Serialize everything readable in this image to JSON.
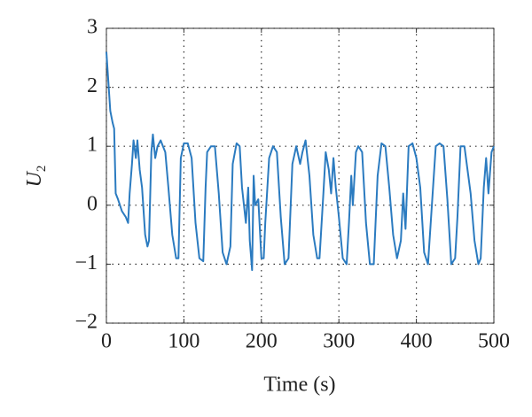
{
  "chart_data": {
    "type": "line",
    "xlabel": "Time (s)",
    "ylabel": {
      "main": "U",
      "sub": "2"
    },
    "xlim": [
      0,
      500
    ],
    "xticks": [
      0,
      100,
      200,
      300,
      400,
      500
    ],
    "ylim": [
      -2,
      3
    ],
    "yticks": [
      {
        "value": -2,
        "label": "−2"
      },
      {
        "value": -1,
        "label": "−1"
      },
      0,
      1,
      2,
      3
    ],
    "grid": true,
    "series": [
      {
        "color": "#2b7bc0",
        "x": [
          0,
          2,
          5,
          8,
          10,
          12,
          15,
          20,
          25,
          28,
          30,
          33,
          35,
          38,
          40,
          43,
          46,
          50,
          53,
          55,
          58,
          60,
          63,
          66,
          70,
          73,
          76,
          80,
          85,
          90,
          93,
          96,
          100,
          105,
          110,
          115,
          120,
          125,
          128,
          130,
          135,
          140,
          145,
          150,
          155,
          160,
          163,
          168,
          172,
          175,
          180,
          183,
          185,
          188,
          190,
          192,
          196,
          200,
          203,
          205,
          210,
          215,
          220,
          225,
          230,
          235,
          240,
          245,
          250,
          253,
          257,
          262,
          267,
          272,
          275,
          280,
          283,
          287,
          290,
          293,
          296,
          300,
          305,
          310,
          313,
          316,
          318,
          322,
          325,
          330,
          335,
          340,
          345,
          350,
          355,
          360,
          365,
          370,
          375,
          380,
          383,
          386,
          390,
          395,
          400,
          405,
          410,
          415,
          420,
          425,
          430,
          435,
          440,
          445,
          450,
          453,
          457,
          462,
          467,
          470,
          475,
          480,
          483,
          487,
          490,
          493,
          497,
          500
        ],
        "values": [
          2.6,
          2.2,
          1.6,
          1.4,
          1.3,
          0.2,
          0.1,
          -0.1,
          -0.2,
          -0.3,
          0.2,
          0.7,
          1.1,
          0.8,
          1.1,
          0.6,
          0.3,
          -0.5,
          -0.7,
          -0.6,
          0.9,
          1.2,
          0.8,
          1.0,
          1.1,
          1.0,
          0.9,
          0.3,
          -0.5,
          -0.9,
          -0.9,
          0.8,
          1.05,
          1.05,
          0.8,
          -0.3,
          -0.9,
          -0.95,
          0.3,
          0.9,
          1.0,
          1.0,
          0.2,
          -0.8,
          -1.0,
          -0.7,
          0.7,
          1.05,
          1.0,
          0.3,
          -0.3,
          0.3,
          -0.6,
          -1.1,
          0.5,
          0,
          0.1,
          -0.9,
          -0.9,
          -0.3,
          0.8,
          1.0,
          0.9,
          -0.2,
          -1.0,
          -0.9,
          0.7,
          1.0,
          0.7,
          0.9,
          1.1,
          0.5,
          -0.5,
          -0.9,
          -0.9,
          0.2,
          0.9,
          0.6,
          0.2,
          0.8,
          0.3,
          -0.2,
          -0.9,
          -1.0,
          -0.3,
          0.5,
          0.0,
          0.9,
          1.0,
          0.9,
          -0.3,
          -1.0,
          -1.0,
          0.5,
          1.05,
          1.0,
          0.3,
          -0.5,
          -0.9,
          -0.6,
          0.2,
          -0.4,
          1.0,
          1.05,
          0.8,
          0.3,
          -0.8,
          -1.0,
          0.0,
          1.0,
          1.05,
          1.0,
          0.1,
          -1.0,
          -0.9,
          -0.2,
          1.0,
          1.0,
          0.5,
          0.2,
          -0.6,
          -1.0,
          -0.9,
          0.3,
          0.8,
          0.2,
          0.9,
          1.0
        ]
      }
    ]
  }
}
